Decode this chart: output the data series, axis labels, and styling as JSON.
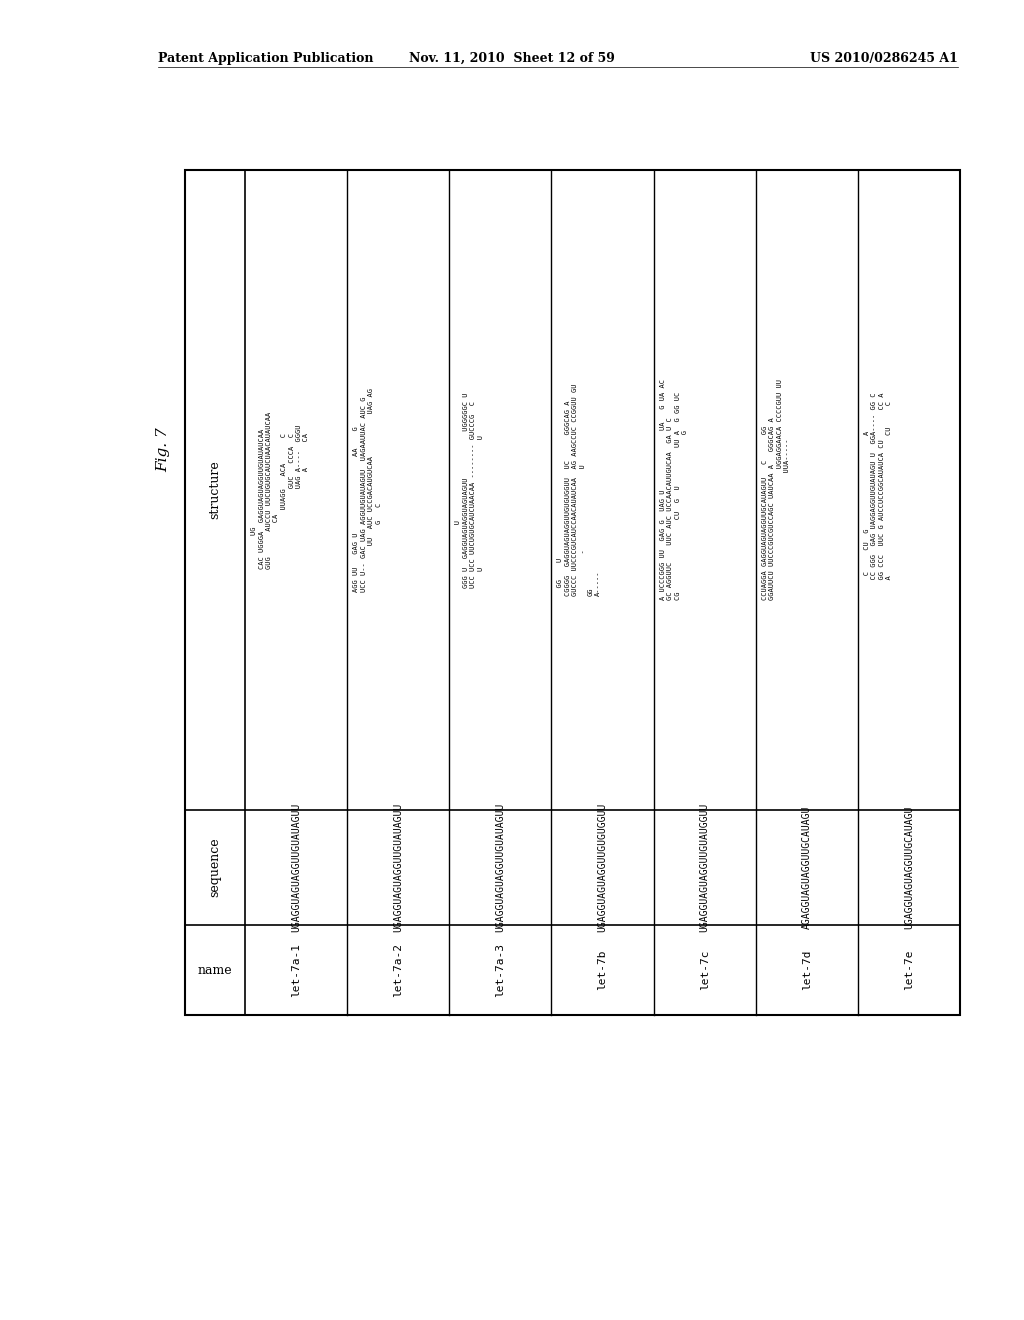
{
  "header_left": "Patent Application Publication",
  "header_mid": "Nov. 11, 2010  Sheet 12 of 59",
  "header_right": "US 2010/0286245 A1",
  "fig_label": "Fig. 7",
  "names": [
    "let-7a-1",
    "let-7a-2",
    "let-7a-3",
    "let-7b",
    "let-7c",
    "let-7d",
    "let-7e"
  ],
  "sequences": [
    "UGAGGUAGUAGGUUGUAUAGUU",
    "UGAGGUAGUAGGUUGUAUAGUU",
    "UGAGGUAGUAGGUUGUAUAGUU",
    "UGAGGUAGUAGGUUGUGUGGUU",
    "UGAGGUAGUAGGUUGUAUGGUU",
    "AGAGGUAGUAGGUUGCAUAGU",
    "UGAGGUAGUAGGUUGCAUAGU"
  ],
  "structures": [
    "        UG\nCAC UGGGA  GAGGUAGUAGGUUGUAUAUCAA\nGUG      AUCCU UUCUGUGCAUCUAACAUAUCAA\n           CA\n              UUAGG   ACA      C\n                   GUC   CCCA  C\n                   UAG A----  GGGU\n                       A      CA",
    "AGG UU   GAG U                  AA    G\nUCC U-- GAC UAG AGGUUGUAUAGUU  UAGAAUUAC AUC G\n           UU  AUC UCCGACAUGUCAA          UAG AG\n                G   C",
    "               U\nGGG U  GAGGUAGUAGGUAGUAGUU           UGGGGGC U\nUCC UCC UUCUGUGCAUCUAACAA -------- GUCCCG  C\n    U                              U",
    "  GG    U\nCGGGG  GAGGUAGUAGGUUGUGUGGUU  UC      GGGCAG A\nGUCCC UUCCCGUCAUCCAACAUAUCAA  AG AAGCCUC CCGGUU GU\n          -                   U\nGG\nA-----",
    "A UCCCGGG UU  GAG G  UAG U              UA   G UA AC\nGC AGGUUC    UUC AUC UCCAACAUUGUCAA  GA U C\nCG                 CU  G  U         UU A  G GG UC\n                                       G",
    "CCUAGGA GAGGUAGUAGGUUGCAUAGUU   C      GG\nGGAUUCU UUCCCGUCGUCCAGC UAUCAA A   GGGCAG A\n                               UGGAGGAACA CCCCGUU UU\n                              UUA-----",
    "   C     CU  G                      A\n  CC GGG  GAG UAGGAGGUUGUAUAGU U  GGA---- GG C\n  GG CCC  UUC G AUCCUCCGGCAUAUCA CU       CC A\n  A                                 CU     C"
  ]
}
